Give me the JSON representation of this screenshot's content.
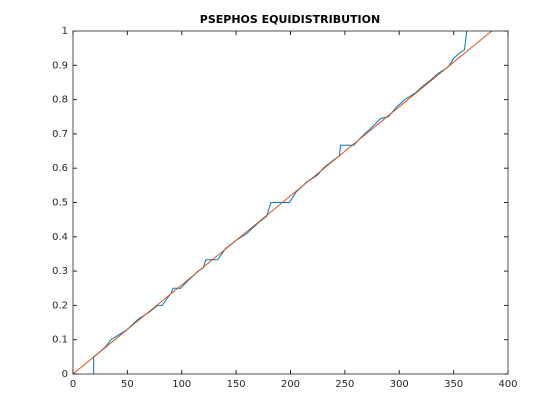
{
  "chart_data": {
    "type": "line",
    "title": "PSEPHOS EQUIDISTRIBUTION",
    "xlim": [
      0,
      400
    ],
    "xticks": [
      0,
      50,
      100,
      150,
      200,
      250,
      300,
      350,
      400
    ],
    "ylim": [
      0,
      1
    ],
    "yticks": [
      0,
      0.1,
      0.2,
      0.3,
      0.4,
      0.5,
      0.6,
      0.7,
      0.8,
      0.9,
      1
    ],
    "series": [
      {
        "color": "#0072bd",
        "x": [
          19,
          19,
          25,
          30,
          35,
          45,
          50,
          60,
          65,
          70,
          78,
          82,
          90,
          92,
          99,
          105,
          115,
          120,
          122,
          133,
          140,
          150,
          160,
          170,
          178,
          182,
          199,
          205,
          215,
          225,
          230,
          240,
          245,
          246,
          258,
          265,
          275,
          283,
          290,
          298,
          305,
          315,
          322,
          330,
          335,
          345,
          350,
          355,
          360,
          362
        ],
        "values": [
          0,
          0.05,
          0.065,
          0.08,
          0.1,
          0.12,
          0.13,
          0.16,
          0.17,
          0.18,
          0.2,
          0.2,
          0.235,
          0.25,
          0.25,
          0.27,
          0.3,
          0.31,
          0.333,
          0.333,
          0.365,
          0.39,
          0.41,
          0.44,
          0.46,
          0.5,
          0.5,
          0.53,
          0.56,
          0.58,
          0.6,
          0.625,
          0.635,
          0.667,
          0.667,
          0.69,
          0.72,
          0.745,
          0.75,
          0.78,
          0.8,
          0.82,
          0.84,
          0.86,
          0.875,
          0.895,
          0.92,
          0.935,
          0.945,
          1
        ]
      },
      {
        "color": "#d95319",
        "x": [
          0,
          385
        ],
        "values": [
          0,
          1
        ]
      }
    ]
  }
}
